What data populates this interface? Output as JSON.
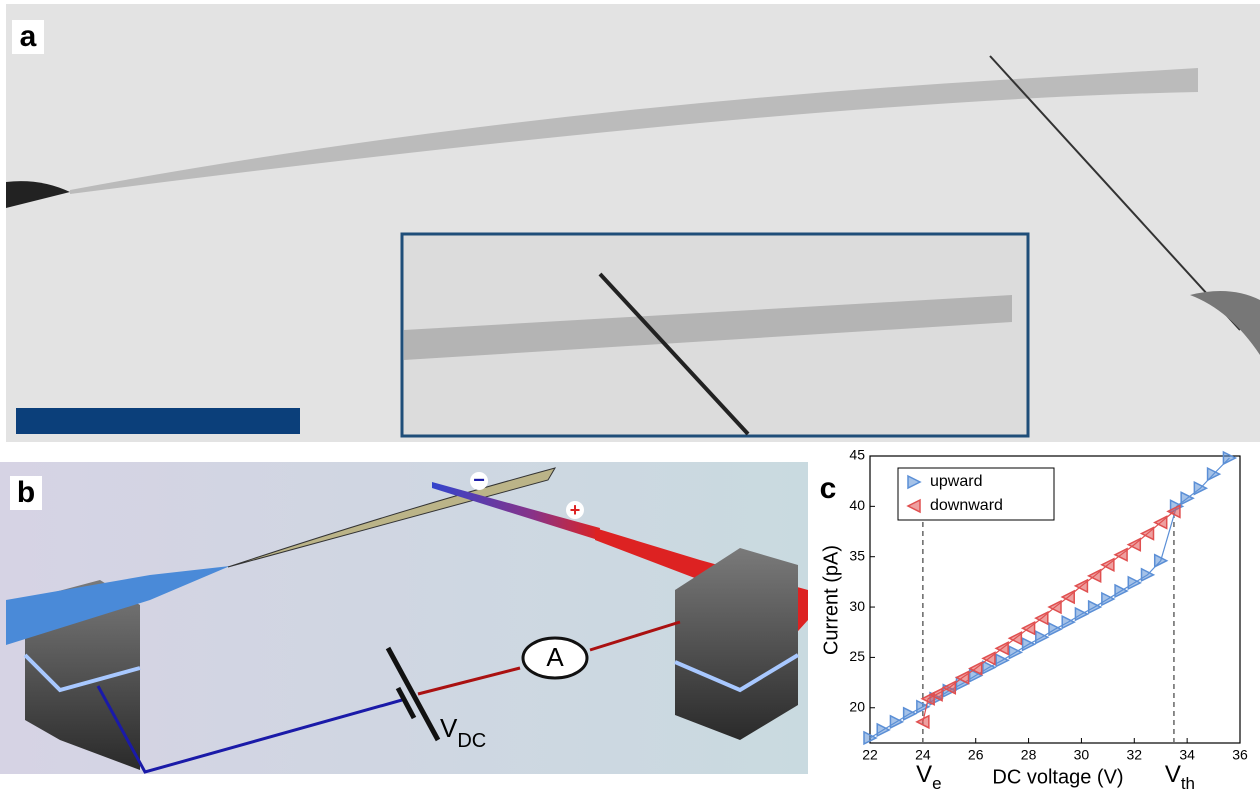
{
  "panel_labels": [
    "a",
    "b",
    "c"
  ],
  "diagram": {
    "source_label": {
      "main": "V",
      "sub": "DC"
    },
    "meter": "A",
    "signs": [
      "−",
      "+"
    ]
  },
  "chart_data": {
    "type": "line",
    "xlabel": "DC  voltage (V)",
    "ylabel": "Current (pA)",
    "xlim": [
      22,
      36
    ],
    "ylim": [
      16.5,
      45
    ],
    "xticks": [
      22,
      24,
      26,
      28,
      30,
      32,
      34,
      36
    ],
    "yticks": [
      20,
      25,
      30,
      35,
      40,
      45
    ],
    "legend": "upper left",
    "series": [
      {
        "name": "upward",
        "color": "#5b8fd6",
        "marker": "right",
        "x": [
          22,
          22.5,
          23,
          23.5,
          24,
          24.5,
          25,
          25.5,
          26,
          26.5,
          27,
          27.5,
          28,
          28.5,
          29,
          29.5,
          30,
          30.5,
          31,
          31.5,
          32,
          32.5,
          33,
          33.6,
          34,
          34.5,
          35,
          35.6
        ],
        "values": [
          17,
          17.8,
          18.6,
          19.4,
          20.1,
          20.9,
          21.7,
          22.4,
          23.2,
          24,
          24.7,
          25.5,
          26.3,
          27,
          27.8,
          28.5,
          29.3,
          30,
          30.8,
          31.6,
          32.4,
          33.2,
          34.6,
          40,
          40.8,
          41.8,
          43.2,
          44.8
        ]
      },
      {
        "name": "downward",
        "color": "#e05050",
        "marker": "left",
        "x": [
          24,
          24.2,
          24.5,
          25,
          25.5,
          26,
          26.5,
          27,
          27.5,
          28,
          28.5,
          29,
          29.5,
          30,
          30.5,
          31,
          31.5,
          32,
          32.5,
          33,
          33.5
        ],
        "values": [
          18.6,
          20.9,
          21.3,
          22,
          23,
          23.9,
          24.9,
          25.9,
          26.9,
          27.9,
          28.9,
          30,
          31,
          32.1,
          33.1,
          34.2,
          35.2,
          36.2,
          37.3,
          38.4,
          39.5
        ]
      }
    ],
    "annotations": [
      {
        "main": "V",
        "sub": "e",
        "x": 24
      },
      {
        "main": "V",
        "sub": "th",
        "x": 33.5
      }
    ]
  }
}
